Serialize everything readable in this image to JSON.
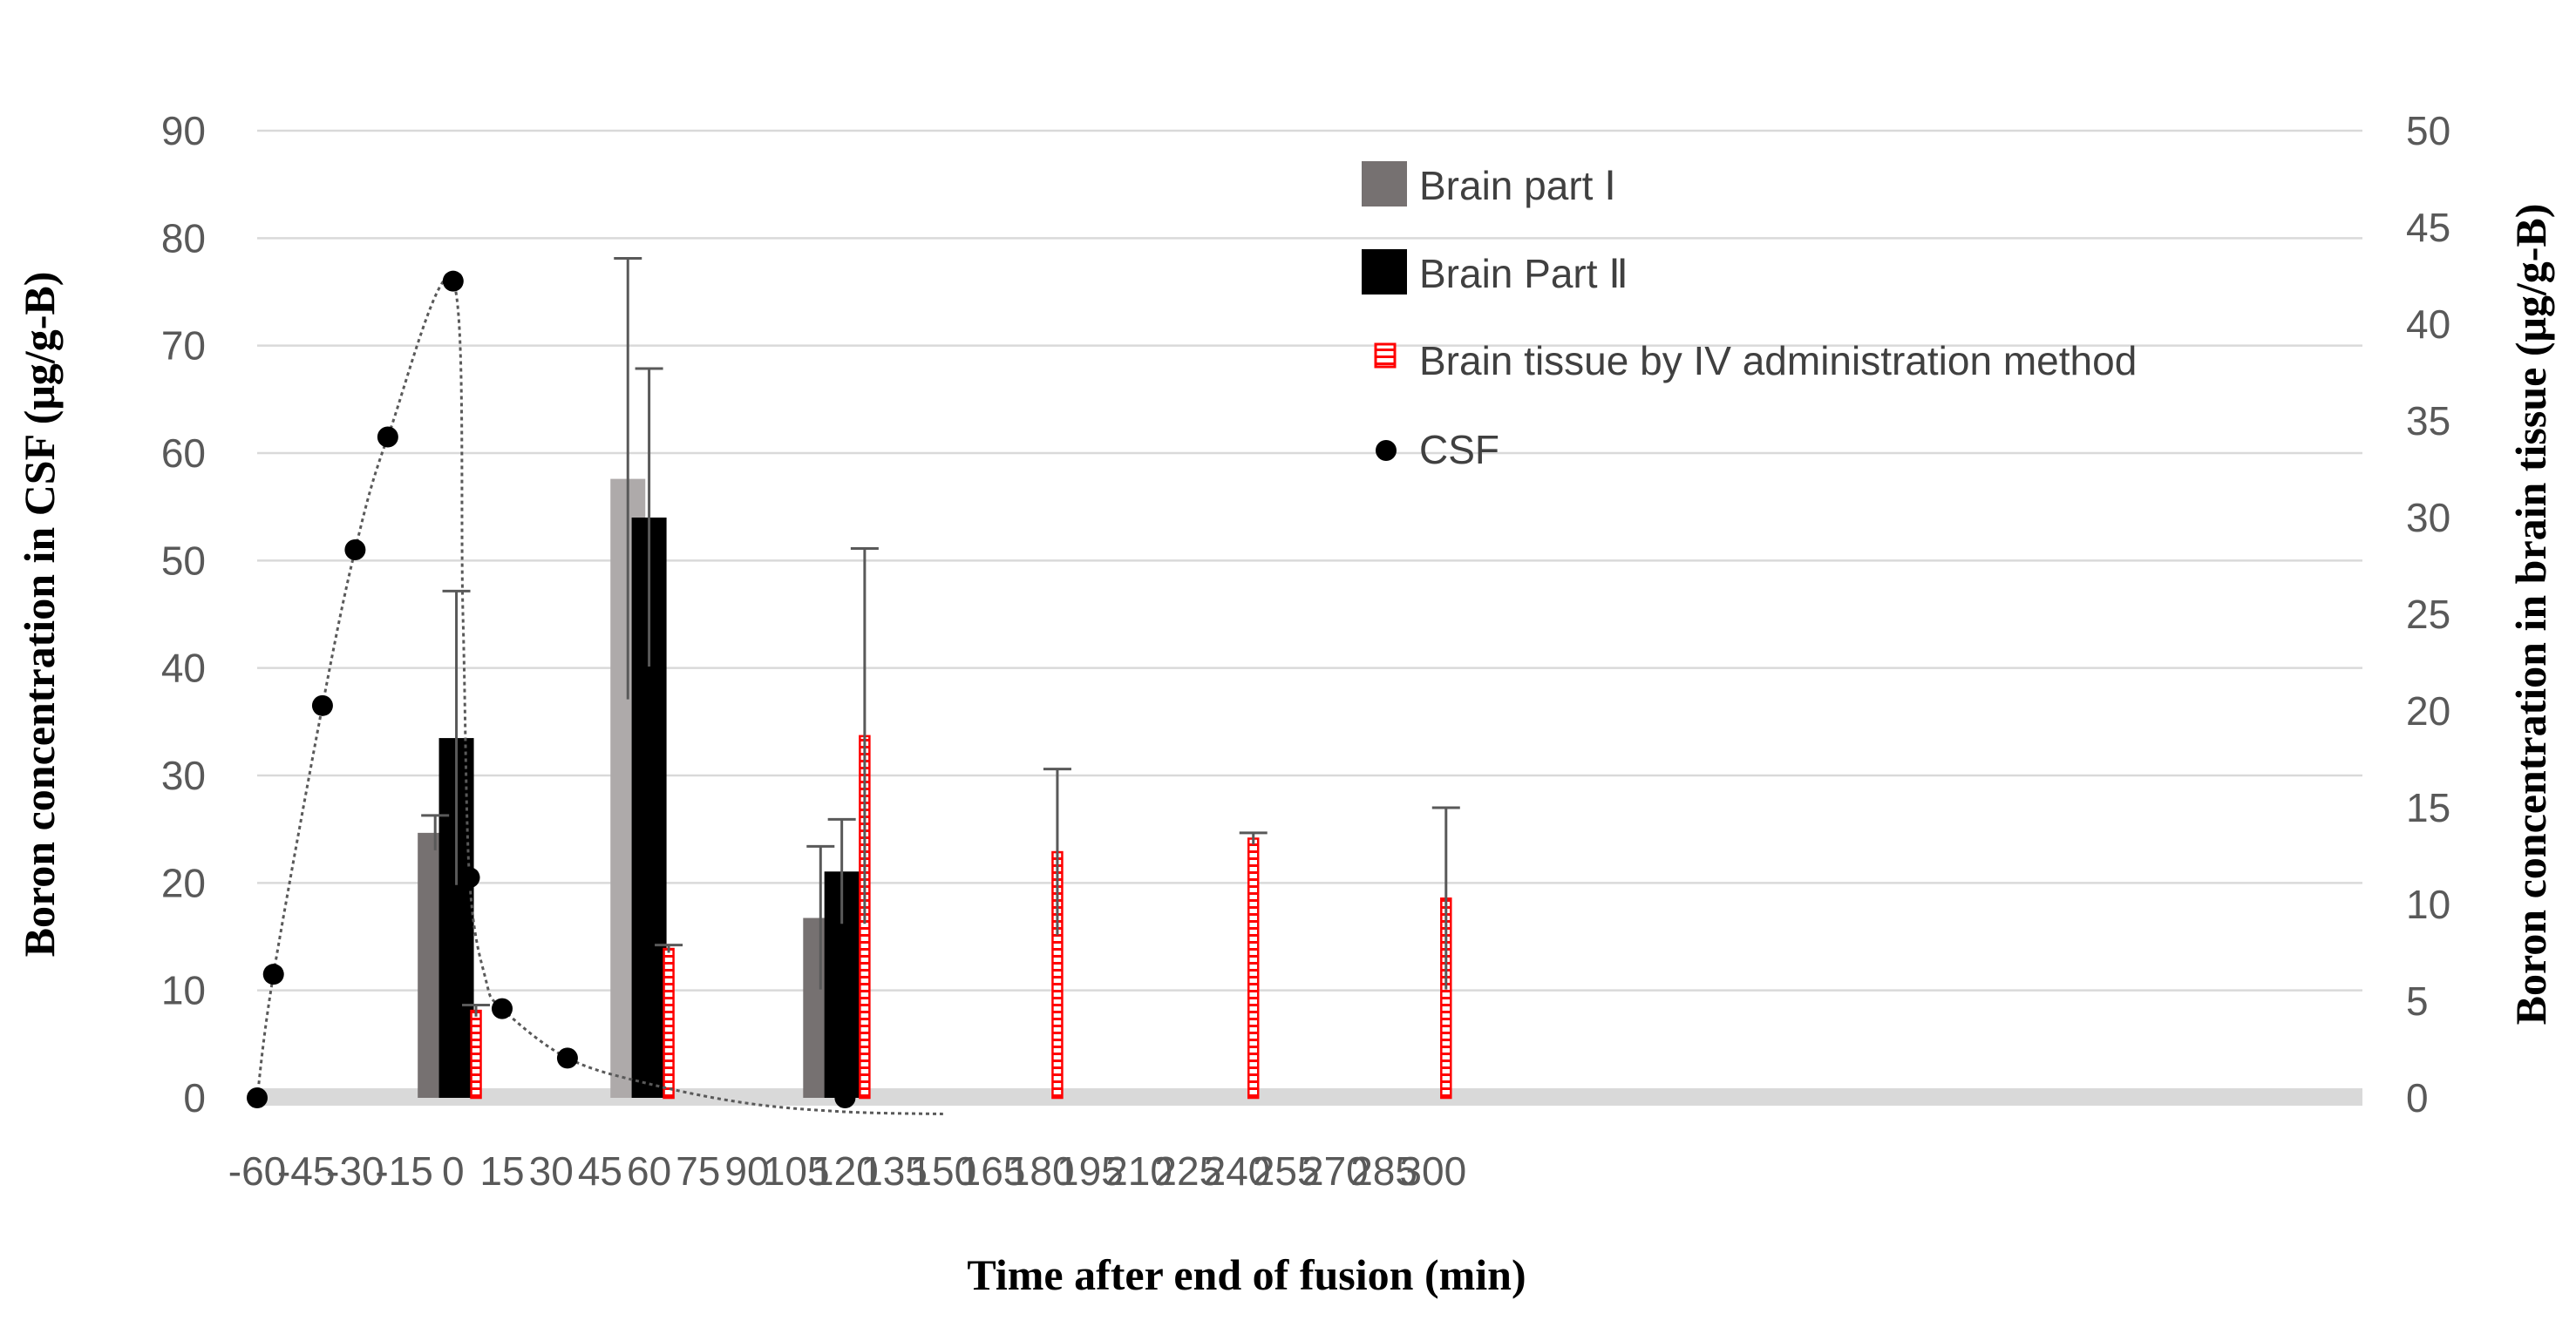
{
  "chart_data": {
    "type": "bar",
    "title": "",
    "xlabel": "Time after end of fusion (min)",
    "ylabel_left": "Boron concentration in CSF (μg/g-B)",
    "ylabel_right": "Boron concentration in brain tissue (μg/g-B)",
    "x_ticks": [
      "-60",
      "-45",
      "-30",
      "-15",
      "0",
      "15",
      "30",
      "45",
      "60",
      "75",
      "90",
      "105",
      "120",
      "135",
      "150",
      "165",
      "180",
      "195",
      "210",
      "225",
      "240",
      "255",
      "270",
      "285",
      "300"
    ],
    "y_left_ticks": [
      "0",
      "10",
      "20",
      "30",
      "40",
      "50",
      "60",
      "70",
      "80",
      "90"
    ],
    "y_right_ticks": [
      "0",
      "5",
      "10",
      "15",
      "20",
      "25",
      "30",
      "35",
      "40",
      "45",
      "50"
    ],
    "xlim": [
      -60,
      305
    ],
    "ylim_left": [
      0,
      90
    ],
    "ylim_right": [
      0,
      50
    ],
    "grid": true,
    "legend_position": "top-right",
    "colors": {
      "brain_part_1": "#767171",
      "brain_part_1_light": "#aeaaaa",
      "brain_part_2": "#000000",
      "iv": "#ff0000",
      "grid": "#d9d9d9",
      "baseline": "#d9d9d9"
    },
    "series": [
      {
        "name": "Brain part Ⅰ",
        "axis": "right",
        "kind": "bar",
        "points": [
          {
            "x": -5.5,
            "y": 13.7,
            "err": 0.9
          },
          {
            "x": 53.5,
            "y": 32.0,
            "err": 11.4
          },
          {
            "x": 112.5,
            "y": 9.3,
            "err": 3.7
          }
        ]
      },
      {
        "name": "Brain Part Ⅱ",
        "axis": "right",
        "kind": "bar",
        "points": [
          {
            "x": 1,
            "y": 18.6,
            "err": 7.6
          },
          {
            "x": 60,
            "y": 30.0,
            "err": 7.7
          },
          {
            "x": 119,
            "y": 11.7,
            "err": 2.7
          }
        ]
      },
      {
        "name": "Brain tissue by IV administration method",
        "axis": "right",
        "kind": "bar",
        "points": [
          {
            "x": 7,
            "y": 4.5,
            "err": 0.3
          },
          {
            "x": 66,
            "y": 7.7,
            "err": 0.2
          },
          {
            "x": 126,
            "y": 18.7,
            "err": 9.7
          },
          {
            "x": 185,
            "y": 12.7,
            "err": 4.3
          },
          {
            "x": 245,
            "y": 13.4,
            "err": 0.3
          },
          {
            "x": 304,
            "y": 10.3,
            "err": 4.7
          }
        ]
      },
      {
        "name": "CSF",
        "axis": "left",
        "kind": "scatter",
        "points": [
          {
            "x": -60,
            "y": 0
          },
          {
            "x": -55,
            "y": 11.5
          },
          {
            "x": -40,
            "y": 36.5
          },
          {
            "x": -30,
            "y": 51
          },
          {
            "x": -20,
            "y": 61.5
          },
          {
            "x": 0,
            "y": 76
          },
          {
            "x": 5,
            "y": 20.5
          },
          {
            "x": 15,
            "y": 8.3
          },
          {
            "x": 35,
            "y": 3.7
          },
          {
            "x": 120,
            "y": 0
          }
        ]
      }
    ],
    "trend_line": [
      {
        "x": -60,
        "y": 0
      },
      {
        "x": -55,
        "y": 11.5
      },
      {
        "x": -40,
        "y": 36.5
      },
      {
        "x": -30,
        "y": 51
      },
      {
        "x": -20,
        "y": 61.5
      },
      {
        "x": 0,
        "y": 76
      },
      {
        "x": 3,
        "y": 45
      },
      {
        "x": 5,
        "y": 20.5
      },
      {
        "x": 10,
        "y": 11
      },
      {
        "x": 15,
        "y": 8.3
      },
      {
        "x": 35,
        "y": 3.7
      },
      {
        "x": 60,
        "y": 1.3
      },
      {
        "x": 90,
        "y": -0.5
      },
      {
        "x": 120,
        "y": -1.3
      },
      {
        "x": 150,
        "y": -1.5
      }
    ]
  }
}
